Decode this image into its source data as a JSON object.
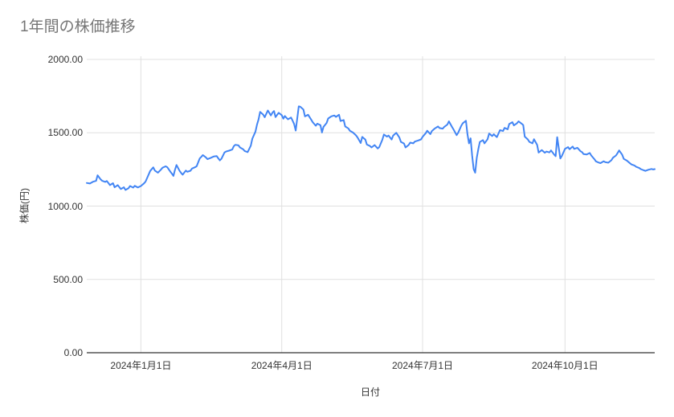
{
  "chart": {
    "title": "1年間の株価推移",
    "colors": {
      "title": "#757575",
      "line": "#4285f4",
      "gridline": "#e0e0e0",
      "axis_line": "#333333",
      "tick_label": "#333333",
      "background": "#ffffff"
    }
  },
  "chart_data": {
    "type": "line",
    "title": "1年間の株価推移",
    "xlabel": "日付",
    "ylabel": "株価(円)",
    "legend": "none",
    "grid": true,
    "ylim": [
      0,
      2000
    ],
    "y_ticks": [
      {
        "value": 0,
        "label": "0.00"
      },
      {
        "value": 500,
        "label": "500.00"
      },
      {
        "value": 1000,
        "label": "1000.00"
      },
      {
        "value": 1500,
        "label": "1500.00"
      },
      {
        "value": 2000,
        "label": "2000.00"
      }
    ],
    "x_reference_date": "2024-01-01",
    "xlim_day_offsets": [
      -35,
      332
    ],
    "x_ticks": [
      {
        "day_offset": 0,
        "label": "2024年1月1日"
      },
      {
        "day_offset": 91,
        "label": "2024年4月1日"
      },
      {
        "day_offset": 182,
        "label": "2024年7月1日"
      },
      {
        "day_offset": 274,
        "label": "2024年10月1日"
      }
    ],
    "series": [
      {
        "name": "株価",
        "points": [
          [
            -35,
            1158
          ],
          [
            -33,
            1154
          ],
          [
            -31,
            1166
          ],
          [
            -29,
            1172
          ],
          [
            -28,
            1210
          ],
          [
            -26,
            1182
          ],
          [
            -25,
            1172
          ],
          [
            -23,
            1165
          ],
          [
            -22,
            1171
          ],
          [
            -20,
            1143
          ],
          [
            -18,
            1156
          ],
          [
            -17,
            1128
          ],
          [
            -15,
            1143
          ],
          [
            -13,
            1116
          ],
          [
            -11,
            1128
          ],
          [
            -10,
            1110
          ],
          [
            -8,
            1122
          ],
          [
            -7,
            1137
          ],
          [
            -5,
            1126
          ],
          [
            -4,
            1138
          ],
          [
            -2,
            1127
          ],
          [
            0,
            1137
          ],
          [
            2,
            1155
          ],
          [
            3,
            1167
          ],
          [
            6,
            1240
          ],
          [
            8,
            1264
          ],
          [
            9,
            1242
          ],
          [
            11,
            1228
          ],
          [
            13,
            1250
          ],
          [
            14,
            1262
          ],
          [
            16,
            1271
          ],
          [
            17,
            1265
          ],
          [
            19,
            1235
          ],
          [
            20,
            1221
          ],
          [
            21,
            1206
          ],
          [
            22,
            1247
          ],
          [
            23,
            1280
          ],
          [
            25,
            1240
          ],
          [
            26,
            1226
          ],
          [
            27,
            1214
          ],
          [
            29,
            1242
          ],
          [
            30,
            1234
          ],
          [
            32,
            1241
          ],
          [
            33,
            1256
          ],
          [
            35,
            1265
          ],
          [
            36,
            1272
          ],
          [
            38,
            1325
          ],
          [
            39,
            1336
          ],
          [
            40,
            1348
          ],
          [
            42,
            1332
          ],
          [
            43,
            1320
          ],
          [
            45,
            1328
          ],
          [
            46,
            1333
          ],
          [
            47,
            1338
          ],
          [
            49,
            1341
          ],
          [
            50,
            1326
          ],
          [
            51,
            1312
          ],
          [
            52,
            1322
          ],
          [
            54,
            1366
          ],
          [
            55,
            1372
          ],
          [
            57,
            1378
          ],
          [
            59,
            1386
          ],
          [
            60,
            1408
          ],
          [
            61,
            1418
          ],
          [
            63,
            1414
          ],
          [
            64,
            1400
          ],
          [
            66,
            1388
          ],
          [
            67,
            1376
          ],
          [
            69,
            1368
          ],
          [
            71,
            1412
          ],
          [
            72,
            1460
          ],
          [
            74,
            1508
          ],
          [
            75,
            1555
          ],
          [
            76,
            1590
          ],
          [
            77,
            1642
          ],
          [
            79,
            1624
          ],
          [
            80,
            1606
          ],
          [
            82,
            1652
          ],
          [
            84,
            1618
          ],
          [
            85,
            1638
          ],
          [
            86,
            1648
          ],
          [
            87,
            1607
          ],
          [
            89,
            1636
          ],
          [
            91,
            1620
          ],
          [
            92,
            1596
          ],
          [
            93,
            1614
          ],
          [
            95,
            1592
          ],
          [
            97,
            1604
          ],
          [
            98,
            1583
          ],
          [
            99,
            1560
          ],
          [
            100,
            1515
          ],
          [
            102,
            1680
          ],
          [
            103,
            1678
          ],
          [
            105,
            1658
          ],
          [
            106,
            1612
          ],
          [
            108,
            1623
          ],
          [
            110,
            1590
          ],
          [
            111,
            1572
          ],
          [
            113,
            1548
          ],
          [
            114,
            1562
          ],
          [
            116,
            1552
          ],
          [
            117,
            1502
          ],
          [
            118,
            1540
          ],
          [
            120,
            1567
          ],
          [
            121,
            1597
          ],
          [
            123,
            1612
          ],
          [
            125,
            1618
          ],
          [
            126,
            1608
          ],
          [
            128,
            1623
          ],
          [
            129,
            1580
          ],
          [
            131,
            1587
          ],
          [
            132,
            1543
          ],
          [
            134,
            1530
          ],
          [
            135,
            1514
          ],
          [
            137,
            1502
          ],
          [
            139,
            1482
          ],
          [
            140,
            1468
          ],
          [
            142,
            1430
          ],
          [
            143,
            1472
          ],
          [
            145,
            1453
          ],
          [
            146,
            1420
          ],
          [
            148,
            1410
          ],
          [
            149,
            1400
          ],
          [
            151,
            1416
          ],
          [
            153,
            1393
          ],
          [
            154,
            1402
          ],
          [
            156,
            1452
          ],
          [
            157,
            1488
          ],
          [
            159,
            1474
          ],
          [
            160,
            1481
          ],
          [
            162,
            1454
          ],
          [
            163,
            1481
          ],
          [
            165,
            1500
          ],
          [
            167,
            1468
          ],
          [
            168,
            1438
          ],
          [
            170,
            1427
          ],
          [
            171,
            1400
          ],
          [
            173,
            1417
          ],
          [
            174,
            1433
          ],
          [
            176,
            1428
          ],
          [
            177,
            1440
          ],
          [
            179,
            1447
          ],
          [
            181,
            1455
          ],
          [
            182,
            1472
          ],
          [
            184,
            1497
          ],
          [
            185,
            1514
          ],
          [
            187,
            1491
          ],
          [
            188,
            1512
          ],
          [
            190,
            1530
          ],
          [
            192,
            1543
          ],
          [
            193,
            1532
          ],
          [
            195,
            1528
          ],
          [
            196,
            1540
          ],
          [
            198,
            1556
          ],
          [
            199,
            1578
          ],
          [
            201,
            1540
          ],
          [
            202,
            1522
          ],
          [
            204,
            1484
          ],
          [
            205,
            1500
          ],
          [
            207,
            1548
          ],
          [
            208,
            1565
          ],
          [
            210,
            1582
          ],
          [
            211,
            1490
          ],
          [
            212,
            1428
          ],
          [
            213,
            1462
          ],
          [
            214,
            1345
          ],
          [
            215,
            1252
          ],
          [
            216,
            1228
          ],
          [
            217,
            1330
          ],
          [
            218,
            1388
          ],
          [
            219,
            1437
          ],
          [
            221,
            1450
          ],
          [
            222,
            1428
          ],
          [
            224,
            1456
          ],
          [
            225,
            1495
          ],
          [
            227,
            1478
          ],
          [
            228,
            1490
          ],
          [
            230,
            1470
          ],
          [
            232,
            1518
          ],
          [
            234,
            1512
          ],
          [
            235,
            1533
          ],
          [
            237,
            1524
          ],
          [
            238,
            1560
          ],
          [
            240,
            1572
          ],
          [
            241,
            1550
          ],
          [
            243,
            1565
          ],
          [
            244,
            1578
          ],
          [
            246,
            1562
          ],
          [
            247,
            1553
          ],
          [
            248,
            1474
          ],
          [
            250,
            1455
          ],
          [
            251,
            1438
          ],
          [
            253,
            1428
          ],
          [
            254,
            1456
          ],
          [
            256,
            1418
          ],
          [
            257,
            1365
          ],
          [
            259,
            1382
          ],
          [
            261,
            1364
          ],
          [
            262,
            1372
          ],
          [
            264,
            1366
          ],
          [
            265,
            1380
          ],
          [
            267,
            1352
          ],
          [
            268,
            1340
          ],
          [
            269,
            1470
          ],
          [
            270,
            1395
          ],
          [
            271,
            1325
          ],
          [
            272,
            1342
          ],
          [
            274,
            1390
          ],
          [
            276,
            1402
          ],
          [
            277,
            1388
          ],
          [
            279,
            1406
          ],
          [
            280,
            1390
          ],
          [
            282,
            1398
          ],
          [
            284,
            1375
          ],
          [
            285,
            1368
          ],
          [
            286,
            1355
          ],
          [
            288,
            1352
          ],
          [
            290,
            1362
          ],
          [
            291,
            1345
          ],
          [
            293,
            1320
          ],
          [
            294,
            1305
          ],
          [
            296,
            1296
          ],
          [
            297,
            1293
          ],
          [
            299,
            1306
          ],
          [
            300,
            1300
          ],
          [
            302,
            1296
          ],
          [
            304,
            1313
          ],
          [
            305,
            1330
          ],
          [
            307,
            1345
          ],
          [
            308,
            1362
          ],
          [
            309,
            1380
          ],
          [
            311,
            1350
          ],
          [
            312,
            1322
          ],
          [
            314,
            1310
          ],
          [
            316,
            1292
          ],
          [
            317,
            1284
          ],
          [
            319,
            1276
          ],
          [
            320,
            1268
          ],
          [
            322,
            1260
          ],
          [
            323,
            1252
          ],
          [
            325,
            1244
          ],
          [
            326,
            1240
          ],
          [
            328,
            1248
          ],
          [
            330,
            1253
          ],
          [
            331,
            1250
          ],
          [
            332,
            1252
          ]
        ]
      }
    ]
  }
}
